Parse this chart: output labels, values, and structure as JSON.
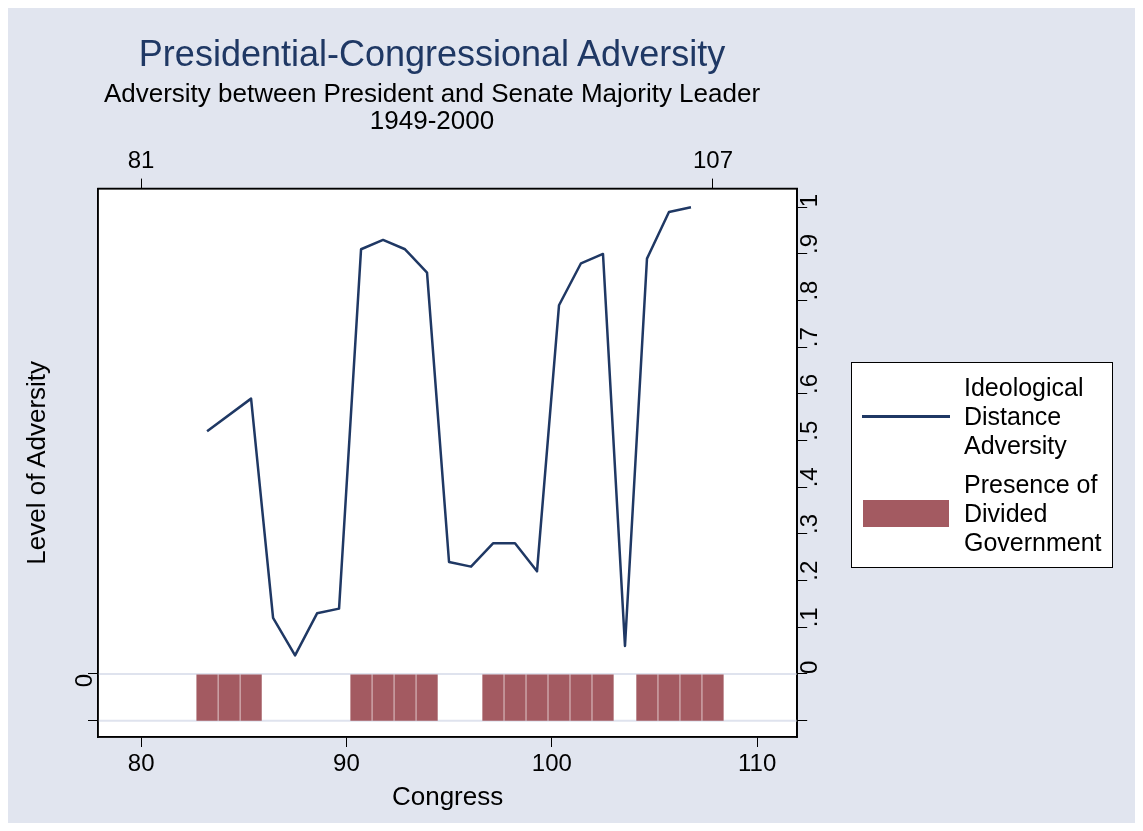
{
  "chart_data": {
    "type": "line",
    "title": "Presidential-Congressional Adversity",
    "subtitle": "Adversity between President and Senate Majority Leader\n1949-2000",
    "xlabel": "Congress",
    "ylabel": "Level of Adversity",
    "xlim": [
      77.9,
      111.95
    ],
    "xticks": [
      80,
      90,
      100,
      110
    ],
    "x2lim": [
      79.04,
      110.83
    ],
    "x2ticks": [
      81,
      107
    ],
    "ylim": [
      -0.135,
      1.04
    ],
    "yticks": [
      {
        "value": -0.1,
        "label": null
      },
      0,
      {
        "value": 0.1,
        "label": ".1"
      },
      {
        "value": 0.2,
        "label": ".2"
      },
      {
        "value": 0.3,
        "label": ".3"
      },
      {
        "value": 0.4,
        "label": ".4"
      },
      {
        "value": 0.5,
        "label": ".5"
      },
      {
        "value": 0.6,
        "label": ".6"
      },
      {
        "value": 0.7,
        "label": ".7"
      },
      {
        "value": 0.8,
        "label": ".8"
      },
      {
        "value": 0.9,
        "label": ".9"
      },
      1
    ],
    "ref_lines": [
      {
        "axis": "y",
        "value": 0,
        "label": "0",
        "color": "#dfe3ee"
      },
      {
        "axis": "y",
        "value": -0.1,
        "color": "#dfe3ee"
      }
    ],
    "legend": "right",
    "series": [
      {
        "name": "Ideological Distance Adversity",
        "color": "#1f3864",
        "axis": "x2",
        "x": [
          84,
          86,
          87,
          88,
          89,
          90,
          91,
          92,
          93,
          94,
          95,
          96,
          97,
          98,
          99,
          100,
          101,
          102,
          103,
          104,
          105,
          106
        ],
        "values": [
          0.52,
          0.59,
          0.12,
          0.04,
          0.13,
          0.14,
          0.91,
          0.93,
          0.91,
          0.86,
          0.24,
          0.23,
          0.28,
          0.28,
          0.22,
          0.79,
          0.88,
          0.9,
          0.06,
          0.89,
          0.99,
          1.0
        ]
      },
      {
        "type": "bar",
        "name": "Presence of Divided Government",
        "color": "#a35a61",
        "axis": "x2",
        "x": [
          84,
          85,
          86,
          91,
          92,
          93,
          94,
          97,
          98,
          99,
          100,
          101,
          102,
          104,
          105,
          106,
          107
        ],
        "base": [
          -0.1,
          -0.1,
          -0.1,
          -0.1,
          -0.1,
          -0.1,
          -0.1,
          -0.1,
          -0.1,
          -0.1,
          -0.1,
          -0.1,
          -0.1,
          -0.1,
          -0.1,
          -0.1,
          -0.1
        ],
        "values": [
          0.1,
          0.1,
          0.1,
          0.1,
          0.1,
          0.1,
          0.1,
          0.1,
          0.1,
          0.1,
          0.1,
          0.1,
          0.1,
          0.1,
          0.1,
          0.1,
          0.1
        ]
      }
    ]
  }
}
